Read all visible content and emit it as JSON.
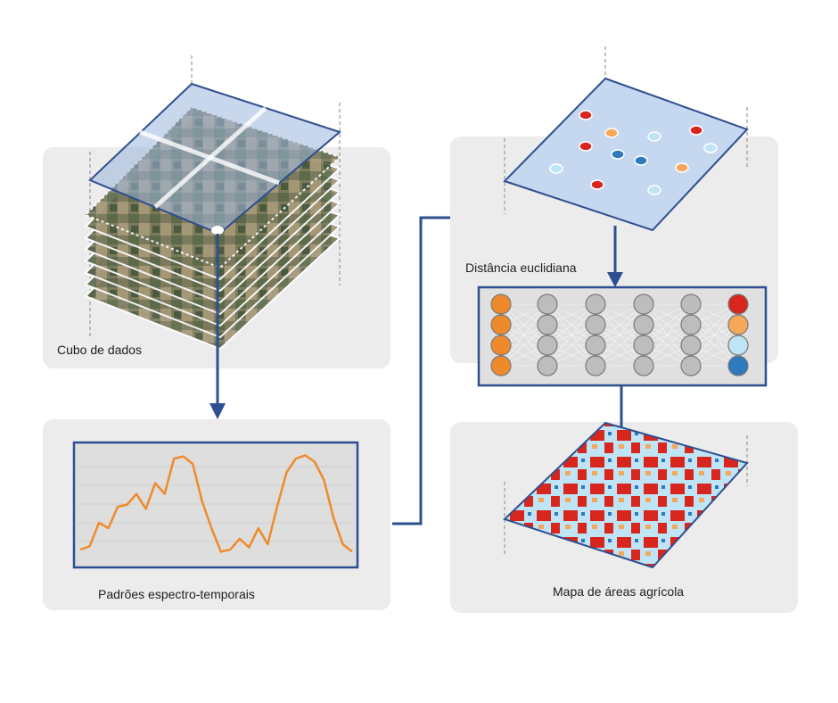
{
  "labels": {
    "data_cube": "Cubo de dados",
    "spectro_temporal": "Padrões espectro-temporais",
    "euclidean_distance": "Distância euclidiana",
    "agri_map": "Mapa de áreas agrícola"
  },
  "colors": {
    "panel": "#ececec",
    "arrow": "#2e4f8f",
    "series": "#ef8a2c",
    "class_red": "#d7261e",
    "class_orange": "#f5a85a",
    "class_lightblue": "#bfe4f5",
    "class_blue": "#2f79bd",
    "input_node": "#ef8a2c",
    "hidden_node": "#bdbdbd"
  },
  "network": {
    "input_nodes": 4,
    "hidden_layers": 4,
    "nodes_per_layer": 4,
    "output_classes": [
      "class_red",
      "class_orange",
      "class_lightblue",
      "class_blue"
    ]
  },
  "series": [
    0.1,
    0.13,
    0.35,
    0.3,
    0.5,
    0.52,
    0.62,
    0.48,
    0.72,
    0.62,
    0.95,
    0.97,
    0.9,
    0.55,
    0.3,
    0.08,
    0.1,
    0.2,
    0.12,
    0.3,
    0.15,
    0.5,
    0.82,
    0.95,
    0.98,
    0.92,
    0.75,
    0.4,
    0.15,
    0.08
  ]
}
